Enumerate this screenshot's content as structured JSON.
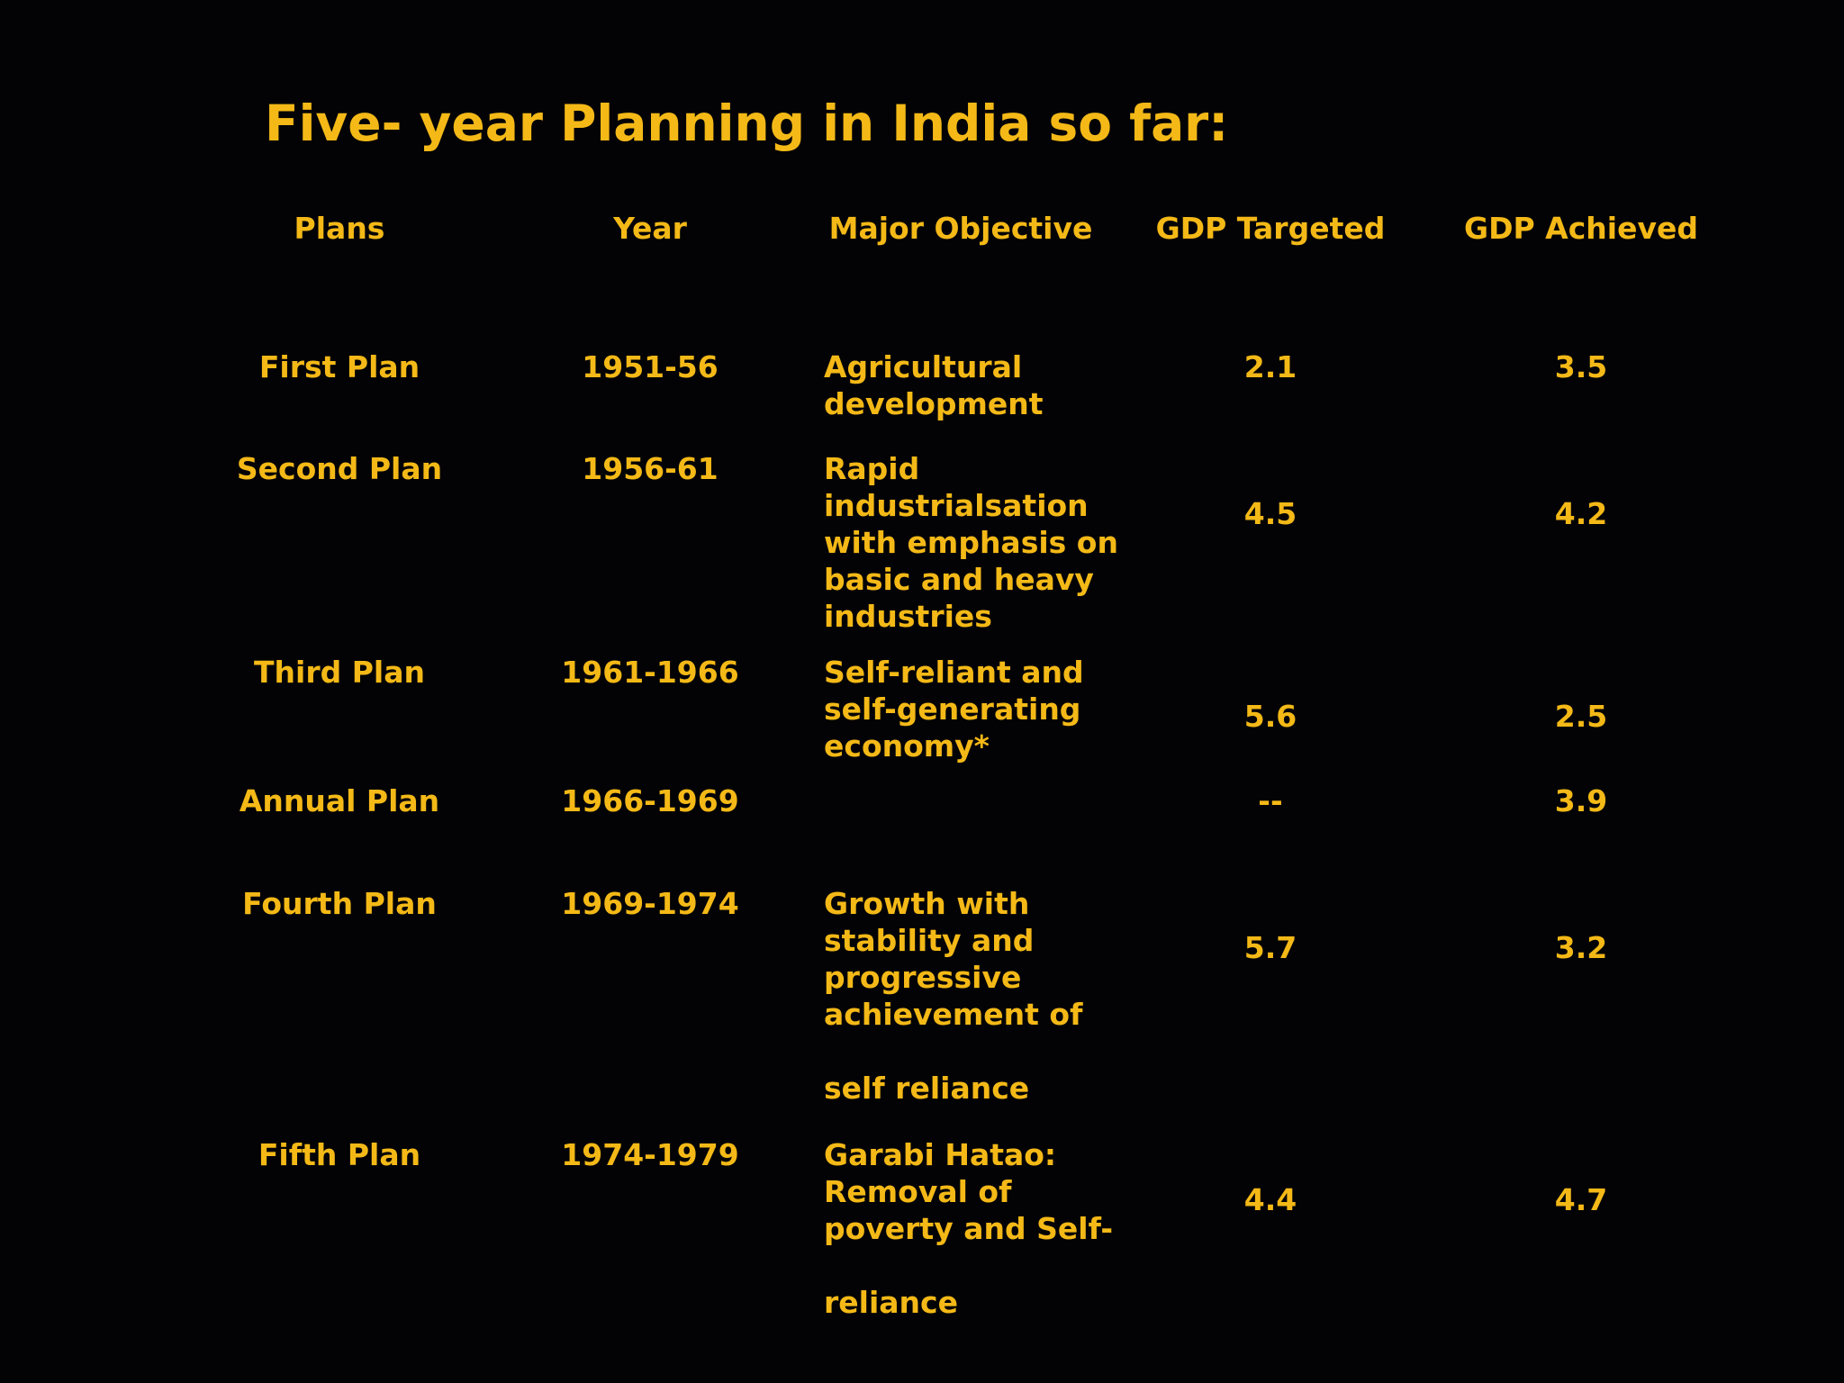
{
  "title": "Five- year Planning in India so far:",
  "table": {
    "headers": {
      "plans": "Plans",
      "year": "Year",
      "objective": "Major Objective",
      "gdp_targeted": "GDP Targeted",
      "gdp_achieved": "GDP Achieved"
    },
    "rows": [
      {
        "plan": "First Plan",
        "year": "1951-56",
        "objective": "Agricultural\ndevelopment",
        "gdp_targeted": "2.1",
        "gdp_achieved": "3.5"
      },
      {
        "plan": "Second Plan",
        "year": "1956-61",
        "objective": "Rapid\nindustrialsation\nwith emphasis on\nbasic and heavy\nindustries",
        "gdp_targeted": "4.5",
        "gdp_achieved": "4.2"
      },
      {
        "plan": "Third Plan",
        "year": "1961-1966",
        "objective": "Self-reliant and\nself-generating\neconomy*",
        "gdp_targeted": "5.6",
        "gdp_achieved": "2.5"
      },
      {
        "plan": "Annual Plan",
        "year": "1966-1969",
        "objective": "",
        "gdp_targeted": "--",
        "gdp_achieved": "3.9"
      },
      {
        "plan": "Fourth Plan",
        "year": "1969-1974",
        "objective": "Growth with\nstability and\nprogressive\nachievement of\n\nself reliance",
        "gdp_targeted": "5.7",
        "gdp_achieved": "3.2"
      },
      {
        "plan": "Fifth Plan",
        "year": "1974-1979",
        "objective": "Garabi Hatao:\nRemoval of\npoverty and Self-\n\nreliance",
        "gdp_targeted": "4.4",
        "gdp_achieved": "4.7"
      }
    ]
  },
  "colors": {
    "background": "#030305",
    "text": "#F4B917"
  }
}
